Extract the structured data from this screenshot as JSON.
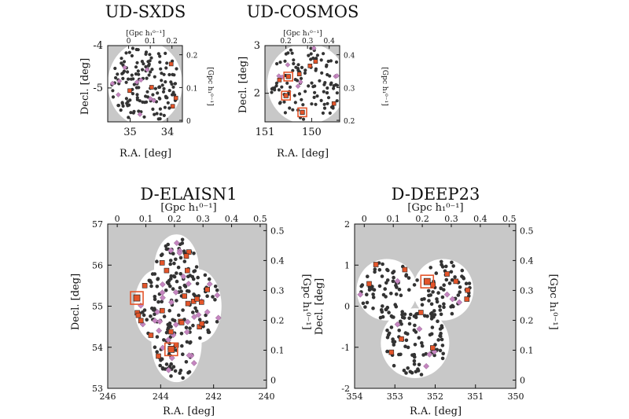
{
  "colors": {
    "mask": "#c8c8c8",
    "field": "#ffffff",
    "galaxy": "#333333",
    "pink_diamond": "#c585c0",
    "orange_square": "#e4552a",
    "highlight_box": "#e4552a"
  },
  "chart_data": [
    {
      "id": "ud-sxds",
      "type": "scatter",
      "title": "UD-SXDS",
      "xlabel": "R.A. [deg]",
      "ylabel": "Decl. [deg]",
      "top_label": "[Gpc h₁⁰⁻¹]",
      "right_label": "[Gpc h₁⁰⁻¹]",
      "xlim": [
        35.6,
        33.6
      ],
      "ylim": [
        -5.8,
        -4.0
      ],
      "xticks": [
        35,
        34
      ],
      "yticks": [
        -4,
        -5
      ],
      "top_ticks": [
        0,
        0.1,
        0.2
      ],
      "right_ticks": [
        0,
        0.1,
        0.2
      ],
      "field_shape": "circle",
      "field_center": [
        34.6,
        -4.9
      ],
      "field_radius_deg": 1.0,
      "highlights": [],
      "n_galaxies": 150,
      "n_pink": 10,
      "n_orange": 5
    },
    {
      "id": "ud-cosmos",
      "type": "scatter",
      "title": "UD-COSMOS",
      "xlabel": "R.A. [deg]",
      "ylabel": "Decl. [deg]",
      "top_label": "[Gpc h₁⁰⁻¹]",
      "right_label": "[Gpc h₁⁰⁻¹]",
      "xlim": [
        151.0,
        149.4
      ],
      "ylim": [
        1.4,
        3.0
      ],
      "xticks": [
        151,
        150
      ],
      "yticks": [
        3,
        2
      ],
      "top_ticks": [
        0.2,
        0.3,
        0.4
      ],
      "right_ticks": [
        0.2,
        0.3,
        0.4
      ],
      "field_shape": "circle",
      "field_center": [
        150.1,
        2.2
      ],
      "field_radius_deg": 0.85,
      "highlights": [
        {
          "ra": 150.5,
          "dec": 2.35
        },
        {
          "ra": 150.55,
          "dec": 1.95
        },
        {
          "ra": 150.2,
          "dec": 1.6
        }
      ],
      "n_galaxies": 110,
      "n_pink": 8,
      "n_orange": 5
    },
    {
      "id": "d-elaisn1",
      "type": "scatter",
      "title": "D-ELAISN1",
      "xlabel": "R.A. [deg]",
      "ylabel": "Decl. [deg]",
      "top_label": "[Gpc h₁⁰⁻¹]",
      "right_label": "[Gpc h₁⁰⁻¹]",
      "xlim": [
        246,
        240
      ],
      "ylim": [
        53,
        57
      ],
      "xticks": [
        246,
        244,
        242,
        240
      ],
      "yticks": [
        53,
        54,
        55,
        56,
        57
      ],
      "top_ticks": [
        0,
        0.1,
        0.2,
        0.3,
        0.4,
        0.5
      ],
      "right_ticks": [
        0,
        0.1,
        0.2,
        0.3,
        0.4,
        0.5
      ],
      "field_shape": "multi-circle",
      "field_circles": [
        {
          "ra": 243.4,
          "dec": 55.9,
          "r": 0.85
        },
        {
          "ra": 244.1,
          "dec": 55.0,
          "r": 0.9
        },
        {
          "ra": 242.6,
          "dec": 55.0,
          "r": 0.9
        },
        {
          "ra": 243.4,
          "dec": 54.1,
          "r": 0.95
        }
      ],
      "highlights": [
        {
          "ra": 244.9,
          "dec": 55.2
        },
        {
          "ra": 243.6,
          "dec": 53.95
        }
      ],
      "n_galaxies": 190,
      "n_pink": 36,
      "n_orange": 24
    },
    {
      "id": "d-deep23",
      "type": "scatter",
      "title": "D-DEEP23",
      "xlabel": "R.A. [deg]",
      "ylabel": "Decl. [deg]",
      "top_label": "[Gpc h₁⁰⁻¹]",
      "right_label": "[Gpc h₁⁰⁻¹]",
      "xlim": [
        354,
        350
      ],
      "ylim": [
        -2,
        2
      ],
      "xticks": [
        354,
        353,
        352,
        351,
        350
      ],
      "yticks": [
        -2,
        -1,
        0,
        1,
        2
      ],
      "top_ticks": [
        0,
        0.1,
        0.2,
        0.3,
        0.4,
        0.5
      ],
      "right_ticks": [
        0,
        0.1,
        0.2,
        0.3,
        0.4,
        0.5
      ],
      "field_shape": "multi-circle",
      "field_circles": [
        {
          "ra": 353.2,
          "dec": 0.4,
          "r": 0.75
        },
        {
          "ra": 351.8,
          "dec": 0.4,
          "r": 0.75
        },
        {
          "ra": 352.5,
          "dec": -0.9,
          "r": 0.85
        }
      ],
      "highlights": [
        {
          "ra": 352.2,
          "dec": 0.6
        }
      ],
      "n_galaxies": 220,
      "n_pink": 10,
      "n_orange": 12
    }
  ]
}
